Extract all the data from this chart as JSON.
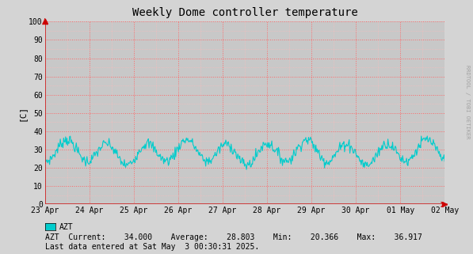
{
  "title": "Weekly Dome controller temperature",
  "ylabel": "[C]",
  "right_label": "RRDTOOL / TOBI OETIKER",
  "ylim": [
    0,
    100
  ],
  "yticks": [
    0,
    10,
    20,
    30,
    40,
    50,
    60,
    70,
    80,
    90,
    100
  ],
  "x_labels": [
    "23 Apr",
    "24 Apr",
    "25 Apr",
    "26 Apr",
    "27 Apr",
    "28 Apr",
    "29 Apr",
    "30 Apr",
    "01 May",
    "02 May"
  ],
  "legend_label": "AZT",
  "legend_color": "#00cccc",
  "stats_text": "AZT  Current:    34.000    Average:    28.803    Min:    20.366    Max:    36.917",
  "last_data_text": "Last data entered at Sat May  3 00:30:31 2025.",
  "line_color": "#00cccc",
  "bg_color": "#d4d4d4",
  "plot_bg_color": "#c8c8c8",
  "grid_color_major": "#ff6666",
  "grid_color_minor": "#ffbbbb",
  "title_color": "#000000",
  "right_label_color": "#999999",
  "current": 34.0,
  "average": 28.803,
  "min_val": 20.366,
  "max_val": 36.917
}
